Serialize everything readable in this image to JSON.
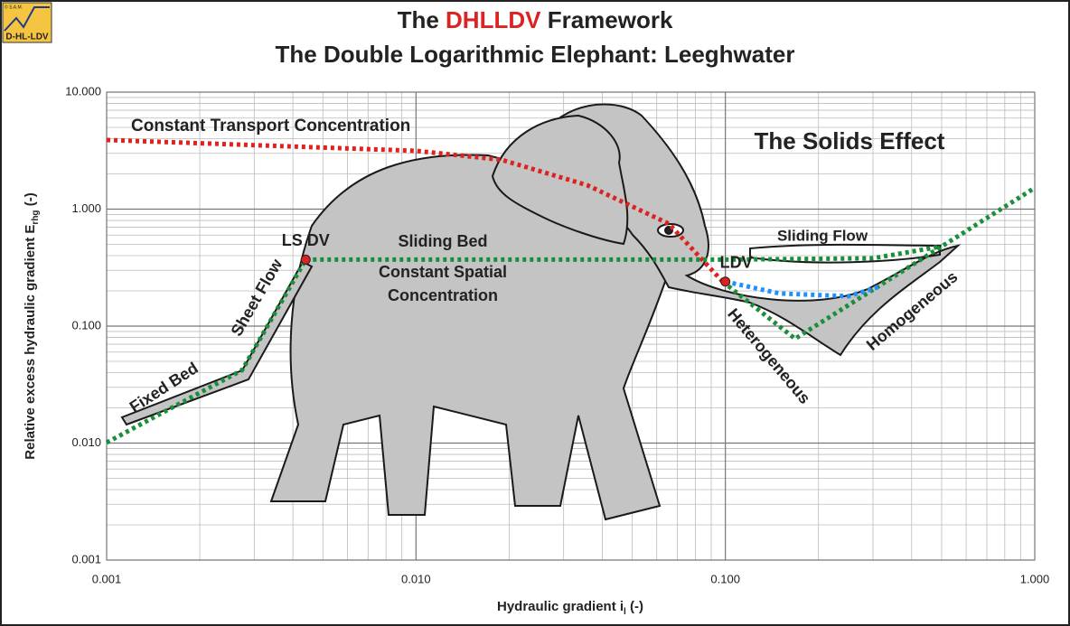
{
  "chart_data": {
    "type": "line",
    "logo": {
      "text": "D-HL-LDV",
      "copyright": "© S.A.M."
    },
    "title": {
      "parts": [
        "The ",
        "DHLLDV",
        " Framework"
      ],
      "highlight": 1,
      "highlight_color": "#dd2222"
    },
    "subtitle": "The Double Logarithmic Elephant: Leeghwater",
    "x_label": {
      "text": "Hydraulic gradient i",
      "sub": "l",
      "suffix": " (-)"
    },
    "y_label": {
      "text": "Relative excess hydraulic gradient E",
      "sub": "rhg",
      "suffix": " (-)"
    },
    "log_x": true,
    "log_y": true,
    "grid": true,
    "minor_grid": true,
    "xlim": [
      0.001,
      1
    ],
    "ylim": [
      0.001,
      10
    ],
    "xticks": [
      {
        "value": 0.001,
        "label": "0.001"
      },
      {
        "value": 0.01,
        "label": "0.010"
      },
      {
        "value": 0.1,
        "label": "0.100"
      },
      {
        "value": 1,
        "label": "1.000"
      }
    ],
    "yticks": [
      {
        "value": 0.001,
        "label": "0.001"
      },
      {
        "value": 0.01,
        "label": "0.010"
      },
      {
        "value": 0.1,
        "label": "0.100"
      },
      {
        "value": 1,
        "label": "1.000"
      },
      {
        "value": 10,
        "label": "10.000"
      }
    ],
    "series": [
      {
        "color": "#dd2222",
        "x": [
          0.001,
          0.01,
          0.0189,
          0.0358,
          0.0656,
          0.098
        ],
        "values": [
          3.9,
          3.15,
          2.64,
          1.6,
          0.75,
          0.24
        ]
      },
      {
        "color": "#1a8f3a",
        "x": [
          0.001,
          0.00274,
          0.0044
        ],
        "values": [
          0.0101,
          0.042,
          0.37
        ]
      },
      {
        "color": "#1a8f3a",
        "x": [
          0.0044,
          0.1,
          0.3,
          0.5
        ],
        "values": [
          0.37,
          0.37,
          0.38,
          0.48
        ]
      },
      {
        "color": "#1a8f3a",
        "x": [
          0.098,
          0.168,
          1
        ],
        "values": [
          0.24,
          0.078,
          1.52
        ]
      },
      {
        "color": "#1e90ff",
        "x": [
          0.1,
          0.15,
          0.25,
          0.32
        ],
        "values": [
          0.24,
          0.19,
          0.18,
          0.22
        ]
      }
    ],
    "markers": {
      "color": "#dd2222",
      "labels": [
        "LS DV",
        "LDV"
      ],
      "x": [
        0.0044,
        0.1
      ],
      "values": [
        0.37,
        0.24
      ]
    },
    "annotations": [
      "Constant Transport Concentration",
      "The Solids Effect",
      "Sliding Bed",
      "Constant Spatial",
      "Concentration",
      "Sliding Flow",
      "Sheet Flow",
      "Fixed Bed",
      "Heterogeneous",
      "Homogeneous"
    ]
  }
}
